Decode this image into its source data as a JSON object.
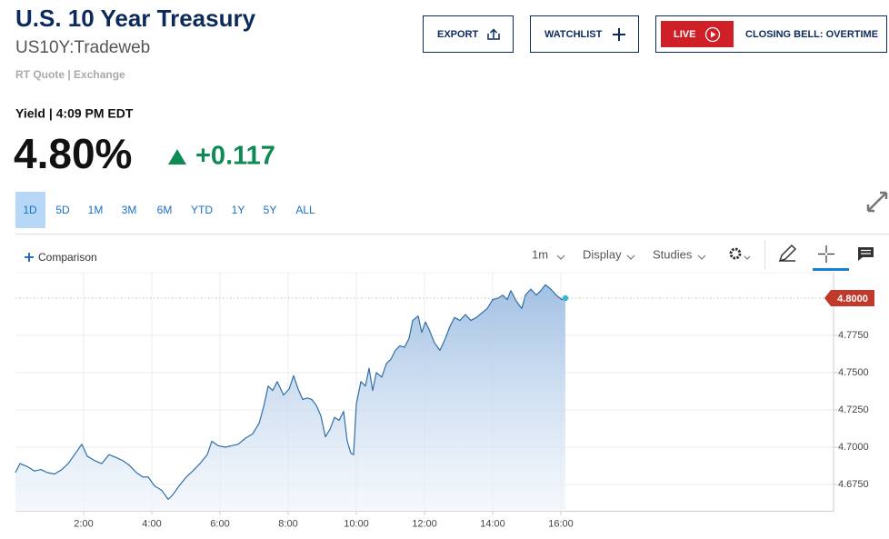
{
  "header": {
    "title": "U.S. 10 Year Treasury",
    "symbol": "US10Y:Tradeweb",
    "source": "RT Quote | Exchange"
  },
  "buttons": {
    "export": "EXPORT",
    "watchlist": "WATCHLIST",
    "live": "LIVE",
    "live_show": "CLOSING BELL: OVERTIME"
  },
  "quote": {
    "label": "Yield | 4:09 PM EDT",
    "price": "4.80%",
    "change": "+0.117"
  },
  "ranges": [
    "1D",
    "5D",
    "1M",
    "3M",
    "6M",
    "YTD",
    "1Y",
    "5Y",
    "ALL"
  ],
  "toolbar": {
    "comparison": "Comparison",
    "interval": "1m",
    "display": "Display",
    "studies": "Studies"
  },
  "chart_data": {
    "type": "line",
    "color": "#2f6fa8",
    "fill": true,
    "grid": true,
    "x": [
      0,
      0.133,
      0.347,
      0.56,
      0.747,
      0.933,
      1.147,
      1.36,
      1.547,
      1.733,
      1.947,
      2.107,
      2.32,
      2.533,
      2.747,
      2.96,
      3.147,
      3.333,
      3.547,
      3.733,
      3.893,
      4.08,
      4.293,
      4.48,
      4.613,
      4.8,
      5.013,
      5.2,
      5.413,
      5.627,
      5.76,
      5.947,
      6.16,
      6.347,
      6.533,
      6.747,
      6.96,
      7.147,
      7.28,
      7.413,
      7.547,
      7.68,
      7.867,
      8.027,
      8.16,
      8.293,
      8.427,
      8.56,
      8.693,
      8.827,
      8.96,
      9.093,
      9.227,
      9.36,
      9.493,
      9.627,
      9.733,
      9.84,
      9.92,
      10.0,
      10.133,
      10.267,
      10.373,
      10.48,
      10.587,
      10.747,
      10.88,
      11.013,
      11.147,
      11.28,
      11.413,
      11.547,
      11.653,
      11.813,
      11.92,
      12.027,
      12.133,
      12.293,
      12.453,
      12.613,
      12.747,
      12.88,
      13.04,
      13.2,
      13.36,
      13.52,
      13.68,
      13.84,
      14.0,
      14.16,
      14.293,
      14.427,
      14.533,
      14.693,
      14.853,
      14.96,
      15.12,
      15.28,
      15.413,
      15.547,
      15.707,
      15.867,
      16.027,
      16.133
    ],
    "values": [
      4.683,
      4.689,
      4.687,
      4.684,
      4.685,
      4.683,
      4.682,
      4.685,
      4.689,
      4.695,
      4.702,
      4.694,
      4.691,
      4.689,
      4.695,
      4.693,
      4.691,
      4.688,
      4.683,
      4.68,
      4.68,
      4.674,
      4.671,
      4.665,
      4.668,
      4.674,
      4.68,
      4.684,
      4.689,
      4.695,
      4.704,
      4.701,
      4.7,
      4.701,
      4.702,
      4.706,
      4.709,
      4.716,
      4.727,
      4.741,
      4.738,
      4.744,
      4.735,
      4.739,
      4.748,
      4.739,
      4.732,
      4.733,
      4.732,
      4.728,
      4.721,
      4.707,
      4.712,
      4.72,
      4.718,
      4.724,
      4.704,
      4.696,
      4.695,
      4.729,
      4.744,
      4.741,
      4.753,
      4.738,
      4.75,
      4.747,
      4.756,
      4.759,
      4.765,
      4.768,
      4.767,
      4.773,
      4.785,
      4.788,
      4.777,
      4.784,
      4.779,
      4.77,
      4.765,
      4.773,
      4.781,
      4.787,
      4.785,
      4.789,
      4.785,
      4.787,
      4.79,
      4.793,
      4.799,
      4.8,
      4.802,
      4.799,
      4.805,
      4.798,
      4.793,
      4.802,
      4.806,
      4.802,
      4.805,
      4.809,
      4.806,
      4.802,
      4.799,
      4.8
    ],
    "xlim": [
      0,
      24
    ],
    "xticks": [
      {
        "value": 2,
        "label": "2:00"
      },
      {
        "value": 4,
        "label": "4:00"
      },
      {
        "value": 6,
        "label": "6:00"
      },
      {
        "value": 8,
        "label": "8:00"
      },
      {
        "value": 10,
        "label": "10:00"
      },
      {
        "value": 12,
        "label": "12:00"
      },
      {
        "value": 14,
        "label": "14:00"
      },
      {
        "value": 16,
        "label": "16:00"
      }
    ],
    "ylim": [
      4.657,
      4.817
    ],
    "yticks": [
      {
        "value": 4.675,
        "label": "4.6750"
      },
      {
        "value": 4.7,
        "label": "4.7000"
      },
      {
        "value": 4.725,
        "label": "4.7250"
      },
      {
        "value": 4.75,
        "label": "4.7500"
      },
      {
        "value": 4.775,
        "label": "4.7750"
      }
    ],
    "current_value": {
      "value": 4.8,
      "label": "4.8000"
    }
  }
}
